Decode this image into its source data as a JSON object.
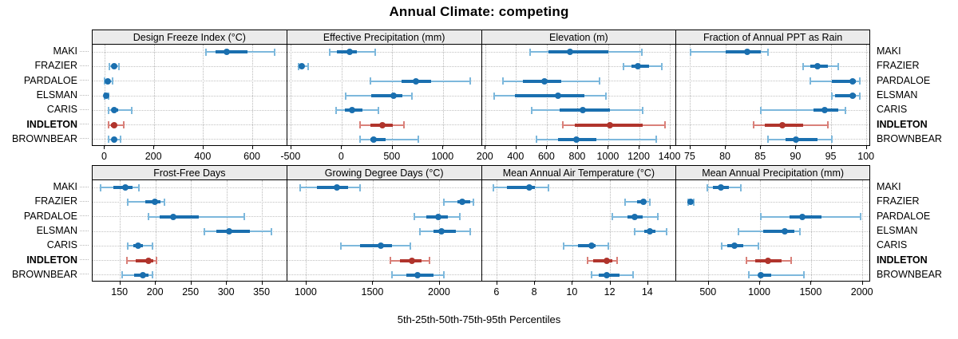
{
  "title": "Annual Climate: competing",
  "footer": "5th-25th-50th-75th-95th Percentiles",
  "sites": [
    "MAKI",
    "FRAZIER",
    "PARDALOE",
    "ELSMAN",
    "CARIS",
    "INDLETON",
    "BROWNBEAR"
  ],
  "highlight_site": "INDLETON",
  "percentile_order": [
    "p5",
    "p25",
    "p50",
    "p75",
    "p95"
  ],
  "colors": {
    "normal_main": "#1a6faf",
    "normal_range": "#7db8dc",
    "highlight_main": "#b0342c",
    "highlight_range": "#d98079",
    "strip_bg": "#ebebeb",
    "grid": "#bdbdbd",
    "border": "#000000"
  },
  "chart_data": [
    {
      "type": "dotplot-interval",
      "title": "Design Freeze Index (°C)",
      "row": 1,
      "xlim": [
        -50,
        740
      ],
      "ticks": [
        0,
        200,
        400,
        600
      ],
      "series": [
        {
          "site": "MAKI",
          "values": [
            410,
            450,
            496,
            580,
            690
          ]
        },
        {
          "site": "FRAZIER",
          "values": [
            18,
            28,
            38,
            48,
            58
          ]
        },
        {
          "site": "PARDALOE",
          "values": [
            -2,
            3,
            10,
            20,
            32
          ]
        },
        {
          "site": "ELSMAN",
          "values": [
            -2,
            0,
            4,
            9,
            14
          ]
        },
        {
          "site": "CARIS",
          "values": [
            15,
            27,
            38,
            55,
            110
          ]
        },
        {
          "site": "INDLETON",
          "values": [
            14,
            25,
            36,
            48,
            76
          ]
        },
        {
          "site": "BROWNBEAR",
          "values": [
            16,
            27,
            37,
            48,
            64
          ]
        }
      ]
    },
    {
      "type": "dotplot-interval",
      "title": "Effective Precipitation (mm)",
      "row": 1,
      "xlim": [
        -540,
        1380
      ],
      "ticks": [
        -500,
        0,
        500,
        1000
      ],
      "series": [
        {
          "site": "MAKI",
          "values": [
            -120,
            -50,
            75,
            150,
            330
          ]
        },
        {
          "site": "FRAZIER",
          "values": [
            -430,
            -415,
            -400,
            -378,
            -330
          ]
        },
        {
          "site": "PARDALOE",
          "values": [
            280,
            590,
            730,
            880,
            1265
          ]
        },
        {
          "site": "ELSMAN",
          "values": [
            40,
            290,
            510,
            600,
            690
          ]
        },
        {
          "site": "CARIS",
          "values": [
            -60,
            30,
            100,
            200,
            360
          ]
        },
        {
          "site": "INDLETON",
          "values": [
            180,
            280,
            400,
            500,
            610
          ]
        },
        {
          "site": "BROWNBEAR",
          "values": [
            180,
            280,
            310,
            430,
            750
          ]
        }
      ]
    },
    {
      "type": "dotplot-interval",
      "title": "Elevation (m)",
      "row": 1,
      "xlim": [
        175,
        1440
      ],
      "ticks": [
        200,
        400,
        600,
        800,
        1000,
        1200,
        1400
      ],
      "series": [
        {
          "site": "MAKI",
          "values": [
            490,
            610,
            750,
            1000,
            1215
          ]
        },
        {
          "site": "FRAZIER",
          "values": [
            1095,
            1150,
            1190,
            1260,
            1345
          ]
        },
        {
          "site": "PARDALOE",
          "values": [
            310,
            440,
            580,
            690,
            940
          ]
        },
        {
          "site": "ELSMAN",
          "values": [
            255,
            390,
            670,
            840,
            980
          ]
        },
        {
          "site": "CARIS",
          "values": [
            500,
            680,
            830,
            1010,
            1220
          ]
        },
        {
          "site": "INDLETON",
          "values": [
            700,
            780,
            1010,
            1220,
            1365
          ]
        },
        {
          "site": "BROWNBEAR",
          "values": [
            530,
            670,
            790,
            920,
            1310
          ]
        }
      ]
    },
    {
      "type": "dotplot-interval",
      "title": "Fraction of Annual PPT as Rain",
      "row": 1,
      "xlim": [
        73,
        100.6
      ],
      "ticks": [
        75,
        80,
        85,
        90,
        95,
        100
      ],
      "series": [
        {
          "site": "MAKI",
          "values": [
            75,
            80,
            83,
            85,
            86
          ]
        },
        {
          "site": "FRAZIER",
          "values": [
            91,
            92,
            93,
            94.5,
            96
          ]
        },
        {
          "site": "PARDALOE",
          "values": [
            92,
            95,
            98,
            98.5,
            99
          ]
        },
        {
          "site": "ELSMAN",
          "values": [
            95,
            95.5,
            98,
            98.5,
            99
          ]
        },
        {
          "site": "CARIS",
          "values": [
            85,
            92.5,
            94,
            96,
            97
          ]
        },
        {
          "site": "INDLETON",
          "values": [
            84,
            85.5,
            88,
            91,
            94.5
          ]
        },
        {
          "site": "BROWNBEAR",
          "values": [
            86,
            88.5,
            90,
            93,
            95
          ]
        }
      ]
    },
    {
      "type": "dotplot-interval",
      "title": "Frost-Free Days",
      "row": 2,
      "xlim": [
        111,
        385
      ],
      "ticks": [
        150,
        200,
        250,
        300,
        350
      ],
      "series": [
        {
          "site": "MAKI",
          "values": [
            122,
            140,
            157,
            167,
            176
          ]
        },
        {
          "site": "FRAZIER",
          "values": [
            160,
            185,
            199,
            206,
            212
          ]
        },
        {
          "site": "PARDALOE",
          "values": [
            190,
            205,
            225,
            260,
            325
          ]
        },
        {
          "site": "ELSMAN",
          "values": [
            268,
            285,
            303,
            332,
            363
          ]
        },
        {
          "site": "CARIS",
          "values": [
            160,
            168,
            175,
            182,
            195
          ]
        },
        {
          "site": "INDLETON",
          "values": [
            159,
            172,
            190,
            196,
            201
          ]
        },
        {
          "site": "BROWNBEAR",
          "values": [
            153,
            170,
            182,
            190,
            195
          ]
        }
      ]
    },
    {
      "type": "dotplot-interval",
      "title": "Growing Degree Days (°C)",
      "row": 2,
      "xlim": [
        855,
        2315
      ],
      "ticks": [
        1000,
        1500,
        2000
      ],
      "series": [
        {
          "site": "MAKI",
          "values": [
            950,
            1080,
            1230,
            1310,
            1400
          ]
        },
        {
          "site": "FRAZIER",
          "values": [
            2030,
            2130,
            2170,
            2230,
            2255
          ]
        },
        {
          "site": "PARDALOE",
          "values": [
            1810,
            1900,
            1990,
            2060,
            2150
          ]
        },
        {
          "site": "ELSMAN",
          "values": [
            1850,
            1950,
            2010,
            2120,
            2230
          ]
        },
        {
          "site": "CARIS",
          "values": [
            1260,
            1400,
            1560,
            1640,
            1780
          ]
        },
        {
          "site": "INDLETON",
          "values": [
            1630,
            1700,
            1790,
            1860,
            1920
          ]
        },
        {
          "site": "BROWNBEAR",
          "values": [
            1640,
            1750,
            1830,
            1950,
            2030
          ]
        }
      ]
    },
    {
      "type": "dotplot-interval",
      "title": "Mean Annual Air Temperature (°C)",
      "row": 2,
      "xlim": [
        5.18,
        15.5
      ],
      "ticks": [
        6,
        8,
        10,
        12,
        14
      ],
      "series": [
        {
          "site": "MAKI",
          "values": [
            5.8,
            6.5,
            7.7,
            8.0,
            8.7
          ]
        },
        {
          "site": "FRAZIER",
          "values": [
            12.8,
            13.4,
            13.75,
            13.9,
            14.1
          ]
        },
        {
          "site": "PARDALOE",
          "values": [
            12.1,
            12.9,
            13.3,
            13.7,
            14.5
          ]
        },
        {
          "site": "ELSMAN",
          "values": [
            13.3,
            13.8,
            14.1,
            14.4,
            15.0
          ]
        },
        {
          "site": "CARIS",
          "values": [
            9.5,
            10.3,
            11.0,
            11.2,
            11.9
          ]
        },
        {
          "site": "INDLETON",
          "values": [
            10.8,
            11.1,
            11.8,
            12.1,
            12.35
          ]
        },
        {
          "site": "BROWNBEAR",
          "values": [
            11.0,
            11.4,
            11.8,
            12.5,
            13.2
          ]
        }
      ]
    },
    {
      "type": "dotplot-interval",
      "title": "Mean Annual Precipitation (mm)",
      "row": 2,
      "xlim": [
        185,
        2080
      ],
      "ticks": [
        500,
        1000,
        1500,
        2000
      ],
      "series": [
        {
          "site": "MAKI",
          "values": [
            490,
            540,
            620,
            700,
            810
          ]
        },
        {
          "site": "FRAZIER",
          "values": [
            300,
            310,
            320,
            335,
            355
          ]
        },
        {
          "site": "PARDALOE",
          "values": [
            1010,
            1290,
            1410,
            1600,
            1980
          ]
        },
        {
          "site": "ELSMAN",
          "values": [
            790,
            1030,
            1240,
            1330,
            1390
          ]
        },
        {
          "site": "CARIS",
          "values": [
            630,
            680,
            750,
            840,
            980
          ]
        },
        {
          "site": "INDLETON",
          "values": [
            870,
            950,
            1080,
            1210,
            1300
          ]
        },
        {
          "site": "BROWNBEAR",
          "values": [
            890,
            985,
            1010,
            1105,
            1430
          ]
        }
      ]
    }
  ]
}
